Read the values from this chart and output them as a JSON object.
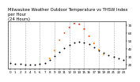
{
  "title": "Milwaukee Weather Outdoor Temperature vs THSW Index\nper Hour\n(24 Hours)",
  "title_fontsize": 3.8,
  "hours": [
    0,
    1,
    2,
    3,
    4,
    5,
    6,
    7,
    8,
    9,
    10,
    11,
    12,
    13,
    14,
    15,
    16,
    17,
    18,
    19,
    20,
    21,
    22,
    23
  ],
  "temp": [
    22,
    21,
    21,
    20,
    20,
    20,
    21,
    22,
    26,
    31,
    36,
    41,
    45,
    48,
    49,
    48,
    46,
    42,
    38,
    35,
    32,
    30,
    28,
    26
  ],
  "thsw": [
    null,
    null,
    null,
    null,
    null,
    null,
    null,
    null,
    28,
    38,
    51,
    60,
    67,
    72,
    71,
    65,
    56,
    47,
    39,
    33,
    null,
    null,
    null,
    null
  ],
  "temp_color": "#000000",
  "thsw_colors": [
    "#ff8800",
    "#ff8800",
    "#ff8800",
    "#ff8800",
    "#ff8800",
    "#ff6600",
    "#ff6600",
    "#ff4400",
    "#ff2200",
    "#ff2200",
    "#ff2200",
    "#ff4400",
    "#ff6600",
    "#ff8800"
  ],
  "ylim": [
    15,
    75
  ],
  "yticks": [
    20,
    30,
    40,
    50,
    60,
    70
  ],
  "ytick_labels": [
    "20",
    "30",
    "40",
    "50",
    "60",
    "70"
  ],
  "xticks": [
    0,
    1,
    2,
    3,
    4,
    5,
    6,
    7,
    8,
    9,
    10,
    11,
    12,
    13,
    14,
    15,
    16,
    17,
    18,
    19,
    20,
    21,
    22,
    23
  ],
  "xtick_labels": [
    "0",
    "1",
    "2",
    "3",
    "4",
    "5",
    "6",
    "7",
    "8",
    "9",
    "10",
    "11",
    "12",
    "13",
    "14",
    "15",
    "16",
    "17",
    "18",
    "19",
    "20",
    "21",
    "22",
    "23"
  ],
  "grid_x_positions": [
    0,
    3,
    6,
    9,
    12,
    15,
    18,
    21
  ],
  "grid_color": "#aaaaaa",
  "bg_color": "#ffffff",
  "marker_size": 2.0,
  "tick_fontsize": 3.0
}
